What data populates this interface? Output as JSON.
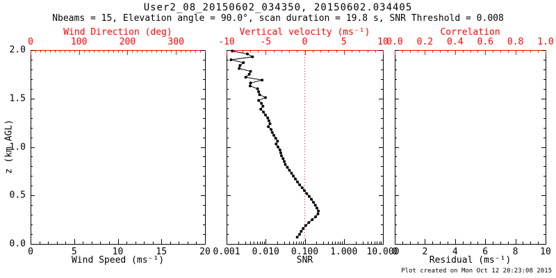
{
  "page": {
    "title": "User2_08_20150602_034350, 20150602.034405",
    "subtitle": "Nbeams = 15, Elevation angle = 90.0°, scan duration = 19.8 s, SNR Threshold = 0.008",
    "footer_note": "Plot created on Mon Oct 12 20:23:08 2015"
  },
  "colors": {
    "frame": "#000000",
    "secondary_axis": "#ff0000",
    "data_series": "#000000",
    "reference_line": "#ff0000",
    "background": "#ffffff"
  },
  "chart_data": {
    "type": "line",
    "title": "User2_08_20150602_034350, 20150602.034405",
    "ylabel": "z (km AGL)",
    "ylim": [
      0,
      2
    ],
    "grid": false,
    "yticks": {
      "values": [
        0,
        0.5,
        1,
        1.5,
        2
      ],
      "labels": [
        "0.0",
        "0.5",
        "1.0",
        "1.5",
        "2.0"
      ],
      "minor_step": 0.1
    },
    "panels": [
      {
        "name": "wind-speed-panel",
        "xlabel": "Wind Speed (ms⁻¹)",
        "xscale": "linear",
        "xlim": [
          0,
          20
        ],
        "xticks": {
          "values": [
            0,
            5,
            10,
            15,
            20
          ],
          "labels": [
            "0",
            "5",
            "10",
            "15",
            "20"
          ],
          "minor_step": 1
        },
        "top_xlabel": "Wind Direction (deg)",
        "top_xlim": [
          0,
          360
        ],
        "top_xticks": {
          "values": [
            0,
            100,
            200,
            300
          ],
          "labels": [
            "0",
            "100",
            "200",
            "300"
          ],
          "minor_step": 10
        },
        "series": []
      },
      {
        "name": "snr-panel",
        "xlabel": "SNR",
        "xscale": "log",
        "xlim": [
          0.001,
          10
        ],
        "xticks": {
          "values": [
            0.001,
            0.01,
            0.1,
            1,
            10
          ],
          "labels": [
            "0.001",
            "0.010",
            "0.100",
            "1.000",
            "10.000"
          ]
        },
        "top_xlabel": "Vertical velocity (ms⁻¹)",
        "top_xlim": [
          -10,
          10
        ],
        "top_xticks": {
          "values": [
            -10,
            -5,
            0,
            5,
            10
          ],
          "labels": [
            "-10",
            "-5",
            "0",
            "5",
            "10"
          ],
          "minor_step": 1
        },
        "reference_line": {
          "axis": "top",
          "value": 0,
          "style": "dotted",
          "color": "#ff0000"
        },
        "series": [
          {
            "name": "SNR profile",
            "marker": "filled-circle",
            "color": "#000000",
            "z": [
              1.99,
              1.96,
              1.93,
              1.9,
              1.87,
              1.84,
              1.81,
              1.78,
              1.75,
              1.72,
              1.69,
              1.66,
              1.63,
              1.6,
              1.57,
              1.54,
              1.51,
              1.48,
              1.45,
              1.42,
              1.39,
              1.36,
              1.33,
              1.3,
              1.27,
              1.24,
              1.21,
              1.18,
              1.15,
              1.12,
              1.09,
              1.06,
              1.03,
              1.0,
              0.97,
              0.94,
              0.91,
              0.88,
              0.85,
              0.82,
              0.79,
              0.76,
              0.73,
              0.7,
              0.67,
              0.64,
              0.61,
              0.58,
              0.55,
              0.52,
              0.49,
              0.46,
              0.43,
              0.4,
              0.37,
              0.34,
              0.31,
              0.28,
              0.25,
              0.22,
              0.19,
              0.16,
              0.13,
              0.1,
              0.07
            ],
            "snr": [
              0.0014,
              0.0034,
              0.0046,
              0.0013,
              0.0027,
              0.0022,
              0.0021,
              0.0041,
              0.0038,
              0.0031,
              0.0081,
              0.0041,
              0.004,
              0.0062,
              0.0066,
              0.007,
              0.0099,
              0.0066,
              0.0078,
              0.0085,
              0.0075,
              0.0088,
              0.0099,
              0.0113,
              0.0121,
              0.0129,
              0.0117,
              0.0138,
              0.0148,
              0.0162,
              0.0181,
              0.0201,
              0.0185,
              0.0207,
              0.0232,
              0.0243,
              0.0254,
              0.0279,
              0.03,
              0.0318,
              0.036,
              0.0405,
              0.046,
              0.051,
              0.0575,
              0.065,
              0.074,
              0.086,
              0.098,
              0.112,
              0.13,
              0.148,
              0.167,
              0.186,
              0.205,
              0.223,
              0.218,
              0.189,
              0.155,
              0.127,
              0.106,
              0.091,
              0.081,
              0.074,
              0.064
            ]
          }
        ]
      },
      {
        "name": "residual-panel",
        "xlabel": "Residual (ms⁻¹)",
        "xscale": "linear",
        "xlim": [
          0,
          10
        ],
        "xticks": {
          "values": [
            0,
            2,
            4,
            6,
            8,
            10
          ],
          "labels": [
            "0",
            "2",
            "4",
            "6",
            "8",
            "10"
          ],
          "minor_step": 0.5
        },
        "top_xlabel": "Correlation",
        "top_xlim": [
          0,
          1
        ],
        "top_xticks": {
          "values": [
            0,
            0.2,
            0.4,
            0.6,
            0.8,
            1.0
          ],
          "labels": [
            "0.0",
            "0.2",
            "0.4",
            "0.6",
            "0.8",
            "1.0"
          ],
          "minor_step": 0.05
        },
        "series": []
      }
    ]
  }
}
